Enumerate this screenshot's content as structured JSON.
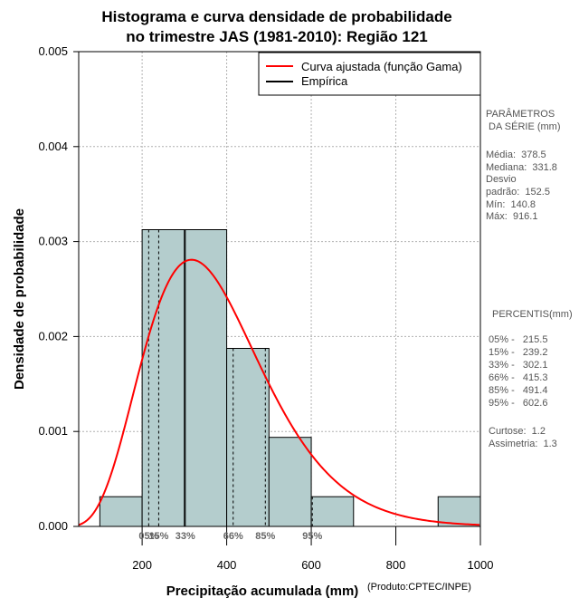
{
  "chart_data": {
    "type": "bar",
    "title": [
      "Histograma e curva densidade de probabilidade",
      "no trimestre JAS (1981-2010): Região 121"
    ],
    "xlabel": "Precipitação acumulada (mm)",
    "ylabel": "Densidade de probabilidade",
    "credit": "(Produto:CPTEC/INPE)",
    "xlim": [
      50,
      1000
    ],
    "ylim": [
      0,
      0.005
    ],
    "xticks": [
      200,
      400,
      600,
      800,
      1000
    ],
    "xtick_labels": [
      "200",
      "400",
      "600",
      "800",
      "1000"
    ],
    "yticks": [
      0,
      0.001,
      0.002,
      0.003,
      0.004,
      0.005
    ],
    "ytick_labels": [
      "0.000",
      "0.001",
      "0.002",
      "0.003",
      "0.004",
      "0.005"
    ],
    "grid": true,
    "bins": [
      {
        "from": 100,
        "to": 200,
        "density": 0.000313
      },
      {
        "from": 200,
        "to": 300,
        "density": 0.003125
      },
      {
        "from": 300,
        "to": 400,
        "density": 0.003125
      },
      {
        "from": 400,
        "to": 500,
        "density": 0.001875
      },
      {
        "from": 500,
        "to": 600,
        "density": 0.000938
      },
      {
        "from": 600,
        "to": 700,
        "density": 0.000313
      },
      {
        "from": 700,
        "to": 800,
        "density": 0
      },
      {
        "from": 800,
        "to": 900,
        "density": 0
      },
      {
        "from": 900,
        "to": 1000,
        "density": 0.000313
      }
    ],
    "curve": {
      "name": "Curva ajustada (função Gama)",
      "color": "#ff0000",
      "shape": 6.14,
      "scale": 61.64
    },
    "empirical": {
      "name": "Empírica",
      "color": "#000000"
    },
    "legend_position": "top-right",
    "bar_fill": "#b4cdcd",
    "percentile_markers": [
      {
        "label": "05%",
        "value": 215.5
      },
      {
        "label": "15%",
        "value": 239.2
      },
      {
        "label": "33%",
        "value": 302.1
      },
      {
        "label": "66%",
        "value": 415.3
      },
      {
        "label": "85%",
        "value": 491.4
      },
      {
        "label": "95%",
        "value": 602.6
      }
    ]
  },
  "side_panel": {
    "params_heading": [
      "PARÂMETROS",
      " DA SÉRIE (mm)"
    ],
    "params": [
      "Média:  378.5",
      "Mediana:  331.8",
      "Desvio",
      "padrão:  152.5",
      "Mín:  140.8",
      "Máx:  916.1"
    ],
    "percentis_heading": "PERCENTIS(mm)",
    "percentis": [
      "05% -   215.5",
      "15% -   239.2",
      "33% -   302.1",
      "66% -   415.3",
      "85% -   491.4",
      "95% -   602.6"
    ],
    "stats": [
      "Curtose:  1.2",
      "Assimetria:  1.3"
    ]
  }
}
